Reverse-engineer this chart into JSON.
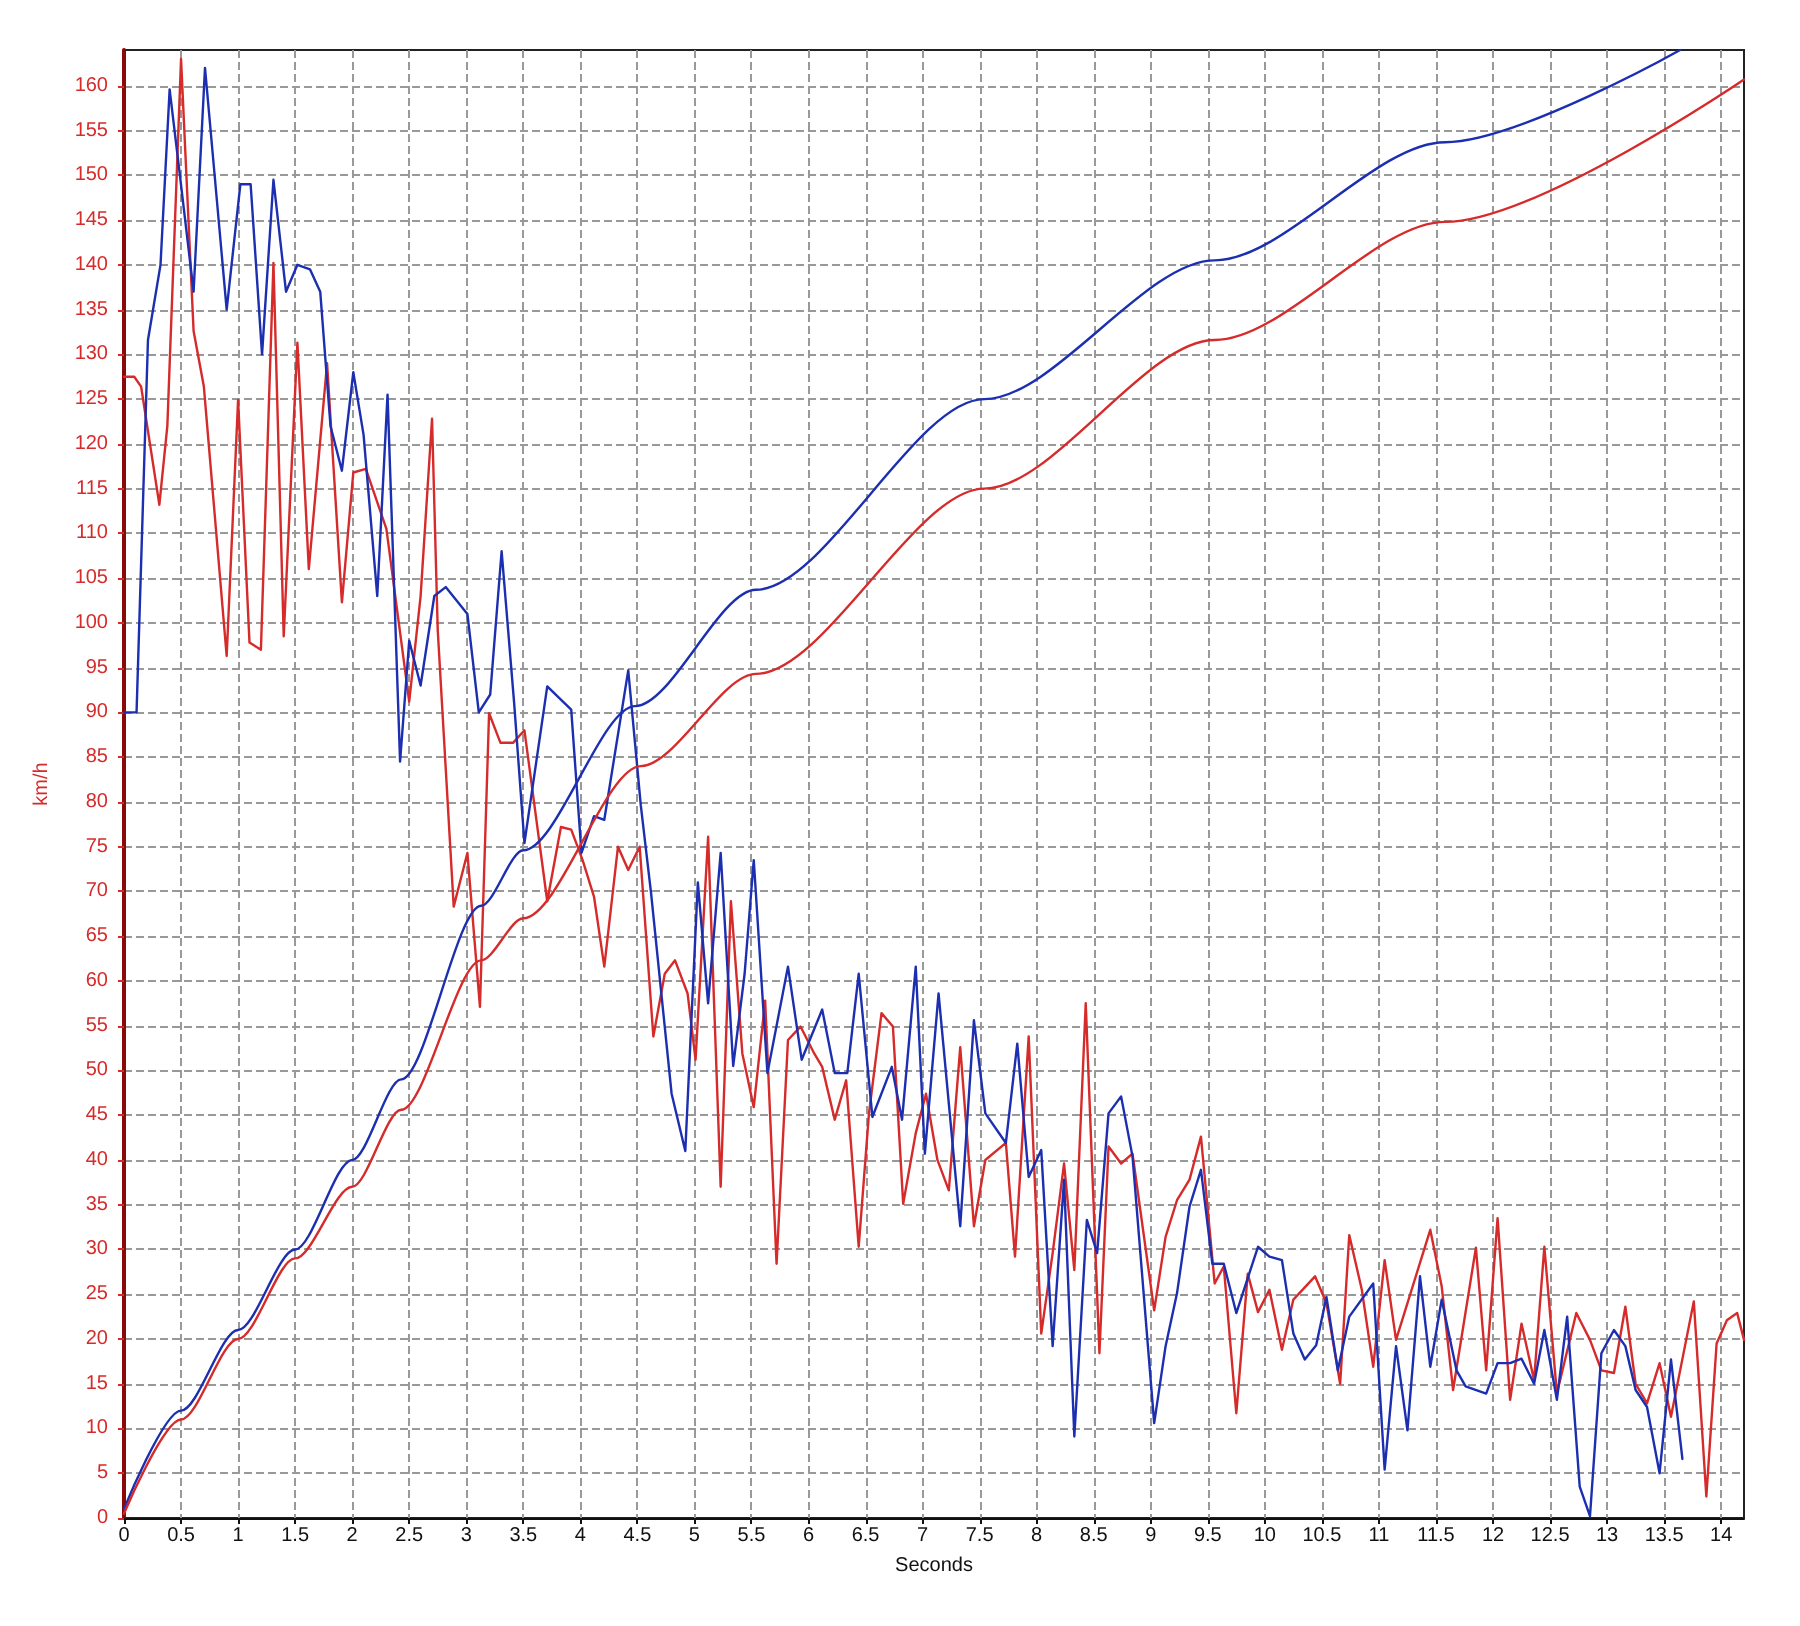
{
  "chart_data": {
    "type": "line",
    "xlabel": "Seconds",
    "ylabel": "km/h",
    "xlim": [
      0,
      14.2
    ],
    "ylim": [
      0,
      164
    ],
    "xticks": [
      0,
      0.5,
      1,
      1.5,
      2,
      2.5,
      3,
      3.5,
      4,
      4.5,
      5,
      5.5,
      6,
      6.5,
      7,
      7.5,
      8,
      8.5,
      9,
      9.5,
      10,
      10.5,
      11,
      11.5,
      12,
      12.5,
      13,
      13.5,
      14
    ],
    "yticks": [
      0,
      5,
      10,
      15,
      20,
      25,
      30,
      35,
      40,
      45,
      50,
      55,
      60,
      65,
      70,
      75,
      80,
      85,
      90,
      95,
      100,
      105,
      110,
      115,
      120,
      125,
      130,
      135,
      140,
      145,
      150,
      155,
      160
    ],
    "grid": true,
    "marker": "none",
    "line_style": "solid",
    "series": [
      {
        "color": "#d62b2b",
        "x": [
          0,
          0.09,
          0.15,
          0.31,
          0.38,
          0.5,
          0.61,
          0.7,
          0.9,
          1.0,
          1.1,
          1.2,
          1.31,
          1.4,
          1.52,
          1.62,
          1.78,
          1.91,
          2.01,
          2.12,
          2.3,
          2.5,
          2.6,
          2.7,
          2.75,
          2.89,
          3.01,
          3.12,
          3.2,
          3.3,
          3.41,
          3.51,
          3.71,
          3.83,
          3.92,
          4.02,
          4.12,
          4.21,
          4.33,
          4.42,
          4.52,
          4.64,
          4.74,
          4.83,
          4.94,
          5.01,
          5.12,
          5.23,
          5.32,
          5.42,
          5.52,
          5.62,
          5.72,
          5.82,
          5.93,
          6.05,
          6.12,
          6.23,
          6.33,
          6.44,
          6.53,
          6.64,
          6.74,
          6.83,
          6.94,
          7.03,
          7.13,
          7.23,
          7.33,
          7.45,
          7.55,
          7.73,
          7.81,
          7.93,
          8.04,
          8.14,
          8.24,
          8.33,
          8.43,
          8.55,
          8.63,
          8.74,
          8.84,
          9.03,
          9.13,
          9.23,
          9.34,
          9.44,
          9.56,
          9.64,
          9.75,
          9.85,
          9.94,
          10.04,
          10.15,
          10.25,
          10.44,
          10.54,
          10.66,
          10.74,
          10.85,
          10.95,
          11.05,
          11.15,
          11.45,
          11.55,
          11.65,
          11.85,
          11.94,
          12.04,
          12.15,
          12.25,
          12.36,
          12.45,
          12.56,
          12.73,
          12.85,
          12.95,
          13.06,
          13.16,
          13.25,
          13.35,
          13.46,
          13.56,
          13.76,
          13.87,
          13.96,
          14.05,
          14.14,
          14.2
        ],
        "values": [
          127.5,
          127.5,
          126.4,
          113.2,
          122,
          163,
          132.6,
          126.4,
          96.3,
          124.9,
          97.8,
          97,
          140.2,
          98.5,
          131.3,
          106,
          129,
          102.3,
          116.8,
          117.2,
          110.5,
          91.2,
          103,
          122.8,
          99.2,
          68.3,
          74.3,
          57.1,
          89.9,
          86.6,
          86.6,
          88,
          68.9,
          77.2,
          76.9,
          73.5,
          69.4,
          61.6,
          75,
          72.4,
          75,
          53.8,
          60.8,
          62.3,
          58.6,
          51.2,
          76.1,
          37,
          68.9,
          51.9,
          45.9,
          57.8,
          28.4,
          53.4,
          54.9,
          51.9,
          50.4,
          44.5,
          48.9,
          30.3,
          45.2,
          56.4,
          54.9,
          35.1,
          43,
          47.4,
          40,
          36.6,
          52.6,
          32.6,
          40,
          41.9,
          29.2,
          53.8,
          20.6,
          29.6,
          39.6,
          27.7,
          57.5,
          18.4,
          41.5,
          39.6,
          40.7,
          23.2,
          31.4,
          35.5,
          37.8,
          42.6,
          26.2,
          28.1,
          11.7,
          27.3,
          23,
          25.5,
          18.8,
          24.4,
          27,
          24,
          15,
          31.6,
          25.5,
          16.9,
          28.8,
          19.9,
          32.2,
          25.9,
          14.3,
          30.2,
          16.5,
          33.5,
          13.2,
          21.7,
          15.4,
          30.3,
          13.9,
          22.9,
          19.9,
          16.5,
          16.2,
          23.6,
          15,
          12.8,
          17.3,
          11.3,
          24.2,
          2.4,
          19.5,
          22.1,
          22.9,
          19.9
        ]
      },
      {
        "color": "#1c2fb0",
        "x": [
          0,
          0.11,
          0.21,
          0.32,
          0.4,
          0.49,
          0.61,
          0.71,
          0.9,
          1.02,
          1.11,
          1.21,
          1.31,
          1.42,
          1.52,
          1.63,
          1.72,
          1.81,
          1.91,
          2.01,
          2.1,
          2.22,
          2.31,
          2.42,
          2.5,
          2.6,
          2.72,
          2.82,
          3.01,
          3.11,
          3.21,
          3.31,
          3.42,
          3.51,
          3.71,
          3.92,
          4.01,
          4.12,
          4.21,
          4.42,
          4.53,
          4.62,
          4.8,
          4.92,
          5.03,
          5.12,
          5.23,
          5.34,
          5.44,
          5.52,
          5.64,
          5.82,
          5.94,
          6.12,
          6.23,
          6.34,
          6.44,
          6.56,
          6.73,
          6.82,
          6.94,
          7.02,
          7.14,
          7.33,
          7.45,
          7.55,
          7.73,
          7.83,
          7.93,
          8.04,
          8.14,
          8.24,
          8.33,
          8.44,
          8.53,
          8.63,
          8.74,
          8.84,
          9.03,
          9.13,
          9.23,
          9.34,
          9.44,
          9.54,
          9.64,
          9.75,
          9.94,
          10.04,
          10.15,
          10.25,
          10.35,
          10.45,
          10.54,
          10.64,
          10.74,
          10.95,
          11.05,
          11.15,
          11.25,
          11.36,
          11.45,
          11.55,
          11.68,
          11.76,
          11.94,
          12.04,
          12.15,
          12.25,
          12.36,
          12.45,
          12.56,
          12.65,
          12.76,
          12.85,
          12.95,
          13.06,
          13.16,
          13.25,
          13.35,
          13.46,
          13.56,
          13.66
        ],
        "values": [
          90,
          90,
          131.6,
          140,
          159.6,
          150,
          137,
          162,
          135,
          149,
          149,
          130,
          149.5,
          137,
          140,
          139.5,
          137,
          122,
          117,
          128,
          121,
          103,
          125.5,
          84.5,
          98,
          93,
          103,
          104,
          101,
          90,
          92,
          108,
          91,
          75.4,
          92.9,
          90.3,
          74.3,
          78.4,
          78,
          94.7,
          79.6,
          69.8,
          47.4,
          41,
          71,
          57.5,
          74.3,
          50.5,
          60.8,
          73.5,
          49.7,
          61.6,
          51.2,
          56.8,
          49.7,
          49.7,
          60.8,
          44.8,
          50.4,
          44.5,
          61.6,
          40.7,
          58.6,
          32.6,
          55.6,
          45.2,
          41.9,
          53,
          38.1,
          41.1,
          19.2,
          37.8,
          9.1,
          33.3,
          29.6,
          45.2,
          47.1,
          40.4,
          10.6,
          19.2,
          25.1,
          34.8,
          38.9,
          28.4,
          28.4,
          22.9,
          30.3,
          29.2,
          28.8,
          20.6,
          17.7,
          19.3,
          24.7,
          16.5,
          22.5,
          26.2,
          5.4,
          19.2,
          9.8,
          27,
          16.9,
          24.4,
          16.5,
          14.7,
          13.9,
          17.3,
          17.3,
          17.8,
          15,
          21,
          13.2,
          22.5,
          3.5,
          0.2,
          18.4,
          21,
          19.2,
          14.3,
          12.4,
          5,
          17.7,
          6.6
        ]
      },
      {
        "color": "#1c2fb0",
        "x": [
          0,
          0.5,
          1,
          1.5,
          2,
          2.43,
          3.13,
          3.5,
          4.48,
          5.54,
          7.54,
          9.56,
          11.58,
          13.64
        ],
        "values": [
          1,
          12,
          21,
          30,
          40,
          49,
          68.4,
          74.6,
          90.7,
          103.7,
          125,
          140.5,
          153.7,
          164
        ]
      },
      {
        "color": "#d62b2b",
        "x": [
          0,
          0.5,
          1,
          1.5,
          2,
          2.43,
          3.13,
          3.5,
          4.53,
          5.54,
          7.54,
          9.56,
          11.58,
          14.2
        ],
        "values": [
          0.5,
          11,
          20,
          29,
          37,
          45.6,
          62.3,
          67,
          84,
          94.3,
          115,
          131.6,
          144.8,
          160.7
        ]
      }
    ]
  }
}
